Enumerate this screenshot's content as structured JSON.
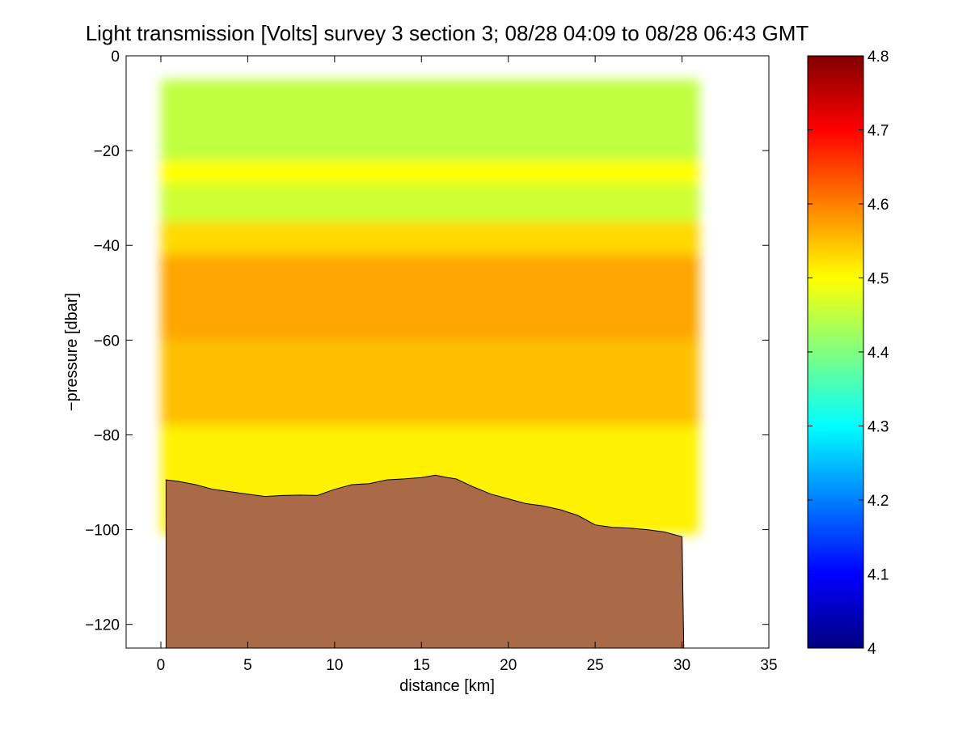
{
  "chart_data": {
    "type": "heatmap",
    "title": "Light transmission [Volts] survey 3 section 3; 08/28 04:09 to 08/28 06:43 GMT",
    "xlabel": "distance [km]",
    "ylabel": "−pressure [dbar]",
    "xlim": [
      -2,
      35
    ],
    "ylim": [
      -125,
      0
    ],
    "xticks": [
      0,
      5,
      10,
      15,
      20,
      25,
      30,
      35
    ],
    "xtick_labels": [
      "0",
      "5",
      "10",
      "15",
      "20",
      "25",
      "30",
      "35"
    ],
    "yticks": [
      0,
      -20,
      -40,
      -60,
      -80,
      -100,
      -120
    ],
    "ytick_labels": [
      "0",
      "−20",
      "−40",
      "−60",
      "−80",
      "−100",
      "−120"
    ],
    "colorbar": {
      "range": [
        4.0,
        4.8
      ],
      "ticks": [
        4,
        4.1,
        4.2,
        4.3,
        4.4,
        4.5,
        4.6,
        4.7,
        4.8
      ],
      "tick_labels": [
        "4",
        "4.1",
        "4.2",
        "4.3",
        "4.4",
        "4.5",
        "4.6",
        "4.7",
        "4.8"
      ],
      "colormap": "jet"
    },
    "data_coverage": {
      "x_range_km": [
        0,
        31
      ],
      "surface_start_dbar": -5
    },
    "field_bands": [
      {
        "depth_range": [
          -5,
          -22
        ],
        "value": 4.45
      },
      {
        "depth_range": [
          -22,
          -27
        ],
        "value": 4.5
      },
      {
        "depth_range": [
          -27,
          -35
        ],
        "value": 4.46
      },
      {
        "depth_range": [
          -35,
          -42
        ],
        "value": 4.53
      },
      {
        "depth_range": [
          -42,
          -60
        ],
        "value": 4.57
      },
      {
        "depth_range": [
          -60,
          -78
        ],
        "value": 4.55
      },
      {
        "depth_range": [
          -78,
          -100
        ],
        "value": 4.51
      }
    ],
    "seafloor": {
      "color": "#AB6A47",
      "x": [
        0.3,
        1,
        2,
        3,
        4,
        5,
        6,
        7,
        8,
        9,
        10,
        11,
        12,
        13,
        14,
        15,
        15.8,
        16.5,
        17,
        18,
        19,
        20,
        21,
        22,
        23,
        24,
        25,
        26,
        27,
        28,
        29,
        30
      ],
      "y": [
        -89.5,
        -89.8,
        -90.5,
        -91.5,
        -92,
        -92.5,
        -93,
        -92.8,
        -92.7,
        -92.8,
        -91.5,
        -90.5,
        -90.3,
        -89.5,
        -89.3,
        -89,
        -88.5,
        -89,
        -89.3,
        -91,
        -92.5,
        -93.5,
        -94.5,
        -95,
        -95.8,
        -97,
        -99,
        -99.5,
        -99.7,
        -100,
        -100.5,
        -101.5
      ],
      "x_end": 30.1,
      "y_bottom": -125
    }
  }
}
